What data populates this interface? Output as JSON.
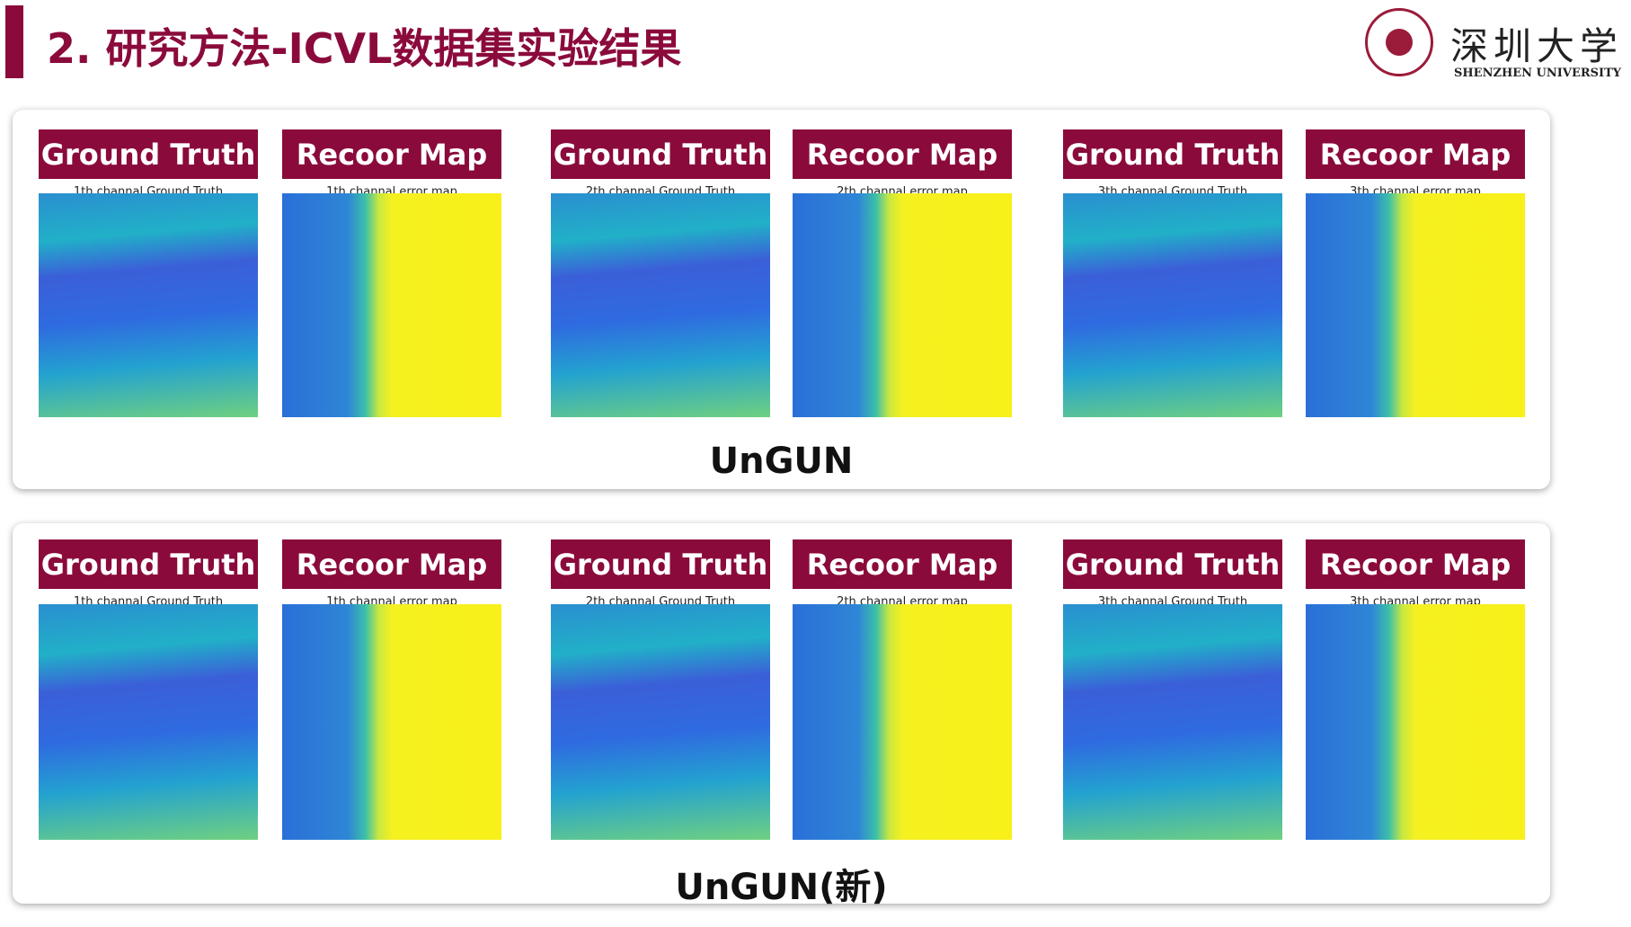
{
  "header": {
    "title": "2. 研究方法-ICVL数据集实验结果",
    "logo_cn": "深圳大学",
    "logo_en": "SHENZHEN UNIVERSITY"
  },
  "panels": [
    {
      "cards": [
        {
          "label": "Ground Truth",
          "caption": "1th channal Ground Truth"
        },
        {
          "label": "Recoor Map",
          "caption": "1th channal error map"
        },
        {
          "label": "Ground Truth",
          "caption": "2th channal Ground Truth"
        },
        {
          "label": "Recoor Map",
          "caption": "2th channal error map"
        },
        {
          "label": "Ground Truth",
          "caption": "3th channal Ground Truth"
        },
        {
          "label": "Recoor Map",
          "caption": "3th channal error map"
        }
      ],
      "footer": "UnGUN"
    },
    {
      "cards": [
        {
          "label": "Ground Truth",
          "caption": "1th channal Ground Truth"
        },
        {
          "label": "Recoor Map",
          "caption": "1th channal error map"
        },
        {
          "label": "Ground Truth",
          "caption": "2th channal Ground Truth"
        },
        {
          "label": "Recoor Map",
          "caption": "2th channal error map"
        },
        {
          "label": "Ground Truth",
          "caption": "3th channal Ground Truth"
        },
        {
          "label": "Recoor Map",
          "caption": "3th channal error map"
        }
      ],
      "footer": "UnGUN(新)"
    }
  ]
}
